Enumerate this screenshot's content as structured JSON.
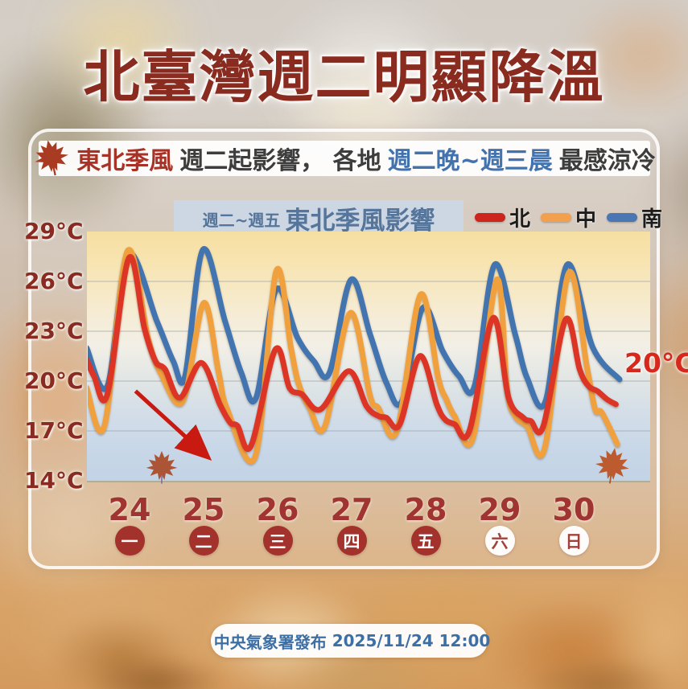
{
  "title": "北臺灣週二明顯降溫",
  "subtitle": {
    "segments": [
      {
        "text": "東北季風",
        "color": "#a93226"
      },
      {
        "text": "週二起影響， 各地 ",
        "color": "#3d3d3d"
      },
      {
        "text": "週二晚~週三晨",
        "color": "#4273ae"
      },
      {
        "text": " 最感涼冷",
        "color": "#3d3d3d"
      }
    ]
  },
  "chart_header": {
    "prefix": "週二~週五",
    "title": "東北季風影響"
  },
  "legend": [
    {
      "label": "北",
      "color": "#cd251b"
    },
    {
      "label": "中",
      "color": "#f2a04e"
    },
    {
      "label": "南",
      "color": "#4a77b4"
    }
  ],
  "threshold_label": "20°C",
  "footer": {
    "agency": "中央氣象署發布",
    "datetime": "2025/11/24 12:00"
  },
  "colors": {
    "title": "#8a2b20",
    "north_line": "#dc3426",
    "central_line": "#f0a03c",
    "south_line": "#4374b0",
    "dashed_threshold": "#b3241a",
    "arrow": "#c81a10",
    "badge_fill": "#a4322c",
    "header_box_text": "#56759b"
  },
  "chart_data": {
    "type": "line",
    "title": "週二~週五 東北季風影響",
    "x_dates": [
      "24",
      "25",
      "26",
      "27",
      "28",
      "29",
      "30"
    ],
    "x_weekdays": [
      "一",
      "二",
      "三",
      "四",
      "五",
      "六",
      "日"
    ],
    "weekday_filled": [
      true,
      true,
      true,
      true,
      true,
      false,
      false
    ],
    "ylim": [
      14,
      29
    ],
    "yticks": [
      "29°C",
      "26°C",
      "23°C",
      "20°C",
      "17°C",
      "14°C"
    ],
    "ytick_values": [
      29,
      26,
      23,
      20,
      17,
      14
    ],
    "gridlines": [
      26,
      23,
      20,
      17
    ],
    "threshold": 20,
    "legend_position": "top-right",
    "series": [
      {
        "name": "北",
        "color": "#dc3426",
        "points": [
          [
            23.42,
            21.3
          ],
          [
            23.52,
            20.3
          ],
          [
            23.7,
            19.2
          ],
          [
            23.99,
            27.4
          ],
          [
            24.2,
            23.2
          ],
          [
            24.35,
            21.2
          ],
          [
            24.48,
            20.7
          ],
          [
            24.68,
            19.0
          ],
          [
            24.97,
            21.1
          ],
          [
            25.22,
            18.6
          ],
          [
            25.36,
            17.5
          ],
          [
            25.46,
            17.3
          ],
          [
            25.64,
            16.1
          ],
          [
            25.97,
            21.9
          ],
          [
            26.16,
            19.6
          ],
          [
            26.33,
            19.2
          ],
          [
            26.58,
            18.3
          ],
          [
            26.96,
            20.6
          ],
          [
            27.2,
            18.5
          ],
          [
            27.36,
            17.9
          ],
          [
            27.47,
            17.8
          ],
          [
            27.65,
            17.4
          ],
          [
            27.92,
            21.5
          ],
          [
            28.15,
            18.6
          ],
          [
            28.26,
            17.7
          ],
          [
            28.39,
            17.4
          ],
          [
            28.59,
            17.0
          ],
          [
            28.91,
            23.8
          ],
          [
            29.12,
            19.0
          ],
          [
            29.32,
            17.8
          ],
          [
            29.42,
            17.6
          ],
          [
            29.59,
            17.3
          ],
          [
            29.89,
            23.7
          ],
          [
            30.08,
            20.7
          ],
          [
            30.2,
            19.7
          ],
          [
            30.32,
            19.4
          ],
          [
            30.45,
            18.9
          ],
          [
            30.57,
            18.6
          ]
        ]
      },
      {
        "name": "中",
        "color": "#f0a03c",
        "points": [
          [
            23.42,
            19.6
          ],
          [
            23.66,
            17.3
          ],
          [
            23.97,
            27.8
          ],
          [
            24.25,
            22.6
          ],
          [
            24.42,
            20.5
          ],
          [
            24.72,
            18.8
          ],
          [
            25.0,
            24.7
          ],
          [
            25.2,
            20.6
          ],
          [
            25.32,
            18.3
          ],
          [
            25.7,
            15.5
          ],
          [
            25.98,
            26.6
          ],
          [
            26.18,
            22.0
          ],
          [
            26.28,
            19.9
          ],
          [
            26.43,
            18.4
          ],
          [
            26.64,
            17.3
          ],
          [
            26.98,
            24.1
          ],
          [
            27.25,
            19.1
          ],
          [
            27.36,
            18.4
          ],
          [
            27.61,
            17.0
          ],
          [
            27.93,
            25.2
          ],
          [
            28.17,
            20.2
          ],
          [
            28.28,
            18.9
          ],
          [
            28.39,
            17.9
          ],
          [
            28.64,
            16.6
          ],
          [
            28.96,
            26.1
          ],
          [
            29.1,
            19.5
          ],
          [
            29.21,
            17.9
          ],
          [
            29.37,
            17.3
          ],
          [
            29.61,
            16.0
          ],
          [
            29.93,
            26.5
          ],
          [
            30.18,
            20.8
          ],
          [
            30.29,
            18.3
          ],
          [
            30.38,
            18.1
          ],
          [
            30.59,
            16.2
          ]
        ]
      },
      {
        "name": "南",
        "color": "#4374b0",
        "points": [
          [
            23.42,
            22.0
          ],
          [
            23.7,
            19.7
          ],
          [
            23.98,
            27.6
          ],
          [
            24.37,
            23.6
          ],
          [
            24.59,
            21.2
          ],
          [
            24.75,
            20.3
          ],
          [
            24.99,
            27.9
          ],
          [
            25.29,
            23.6
          ],
          [
            25.51,
            20.5
          ],
          [
            25.71,
            19.0
          ],
          [
            25.98,
            25.5
          ],
          [
            26.27,
            22.6
          ],
          [
            26.49,
            21.2
          ],
          [
            26.7,
            20.5
          ],
          [
            26.99,
            26.1
          ],
          [
            27.25,
            22.8
          ],
          [
            27.47,
            19.9
          ],
          [
            27.68,
            18.8
          ],
          [
            27.96,
            24.4
          ],
          [
            28.23,
            21.8
          ],
          [
            28.45,
            20.3
          ],
          [
            28.66,
            19.7
          ],
          [
            28.93,
            27.0
          ],
          [
            29.21,
            22.8
          ],
          [
            29.37,
            20.2
          ],
          [
            29.62,
            18.8
          ],
          [
            29.91,
            27.0
          ],
          [
            30.26,
            22.0
          ],
          [
            30.62,
            20.1
          ]
        ]
      }
    ],
    "annotation_arrow": {
      "from": [
        24.08,
        19.4
      ],
      "to": [
        24.99,
        15.7
      ]
    }
  }
}
